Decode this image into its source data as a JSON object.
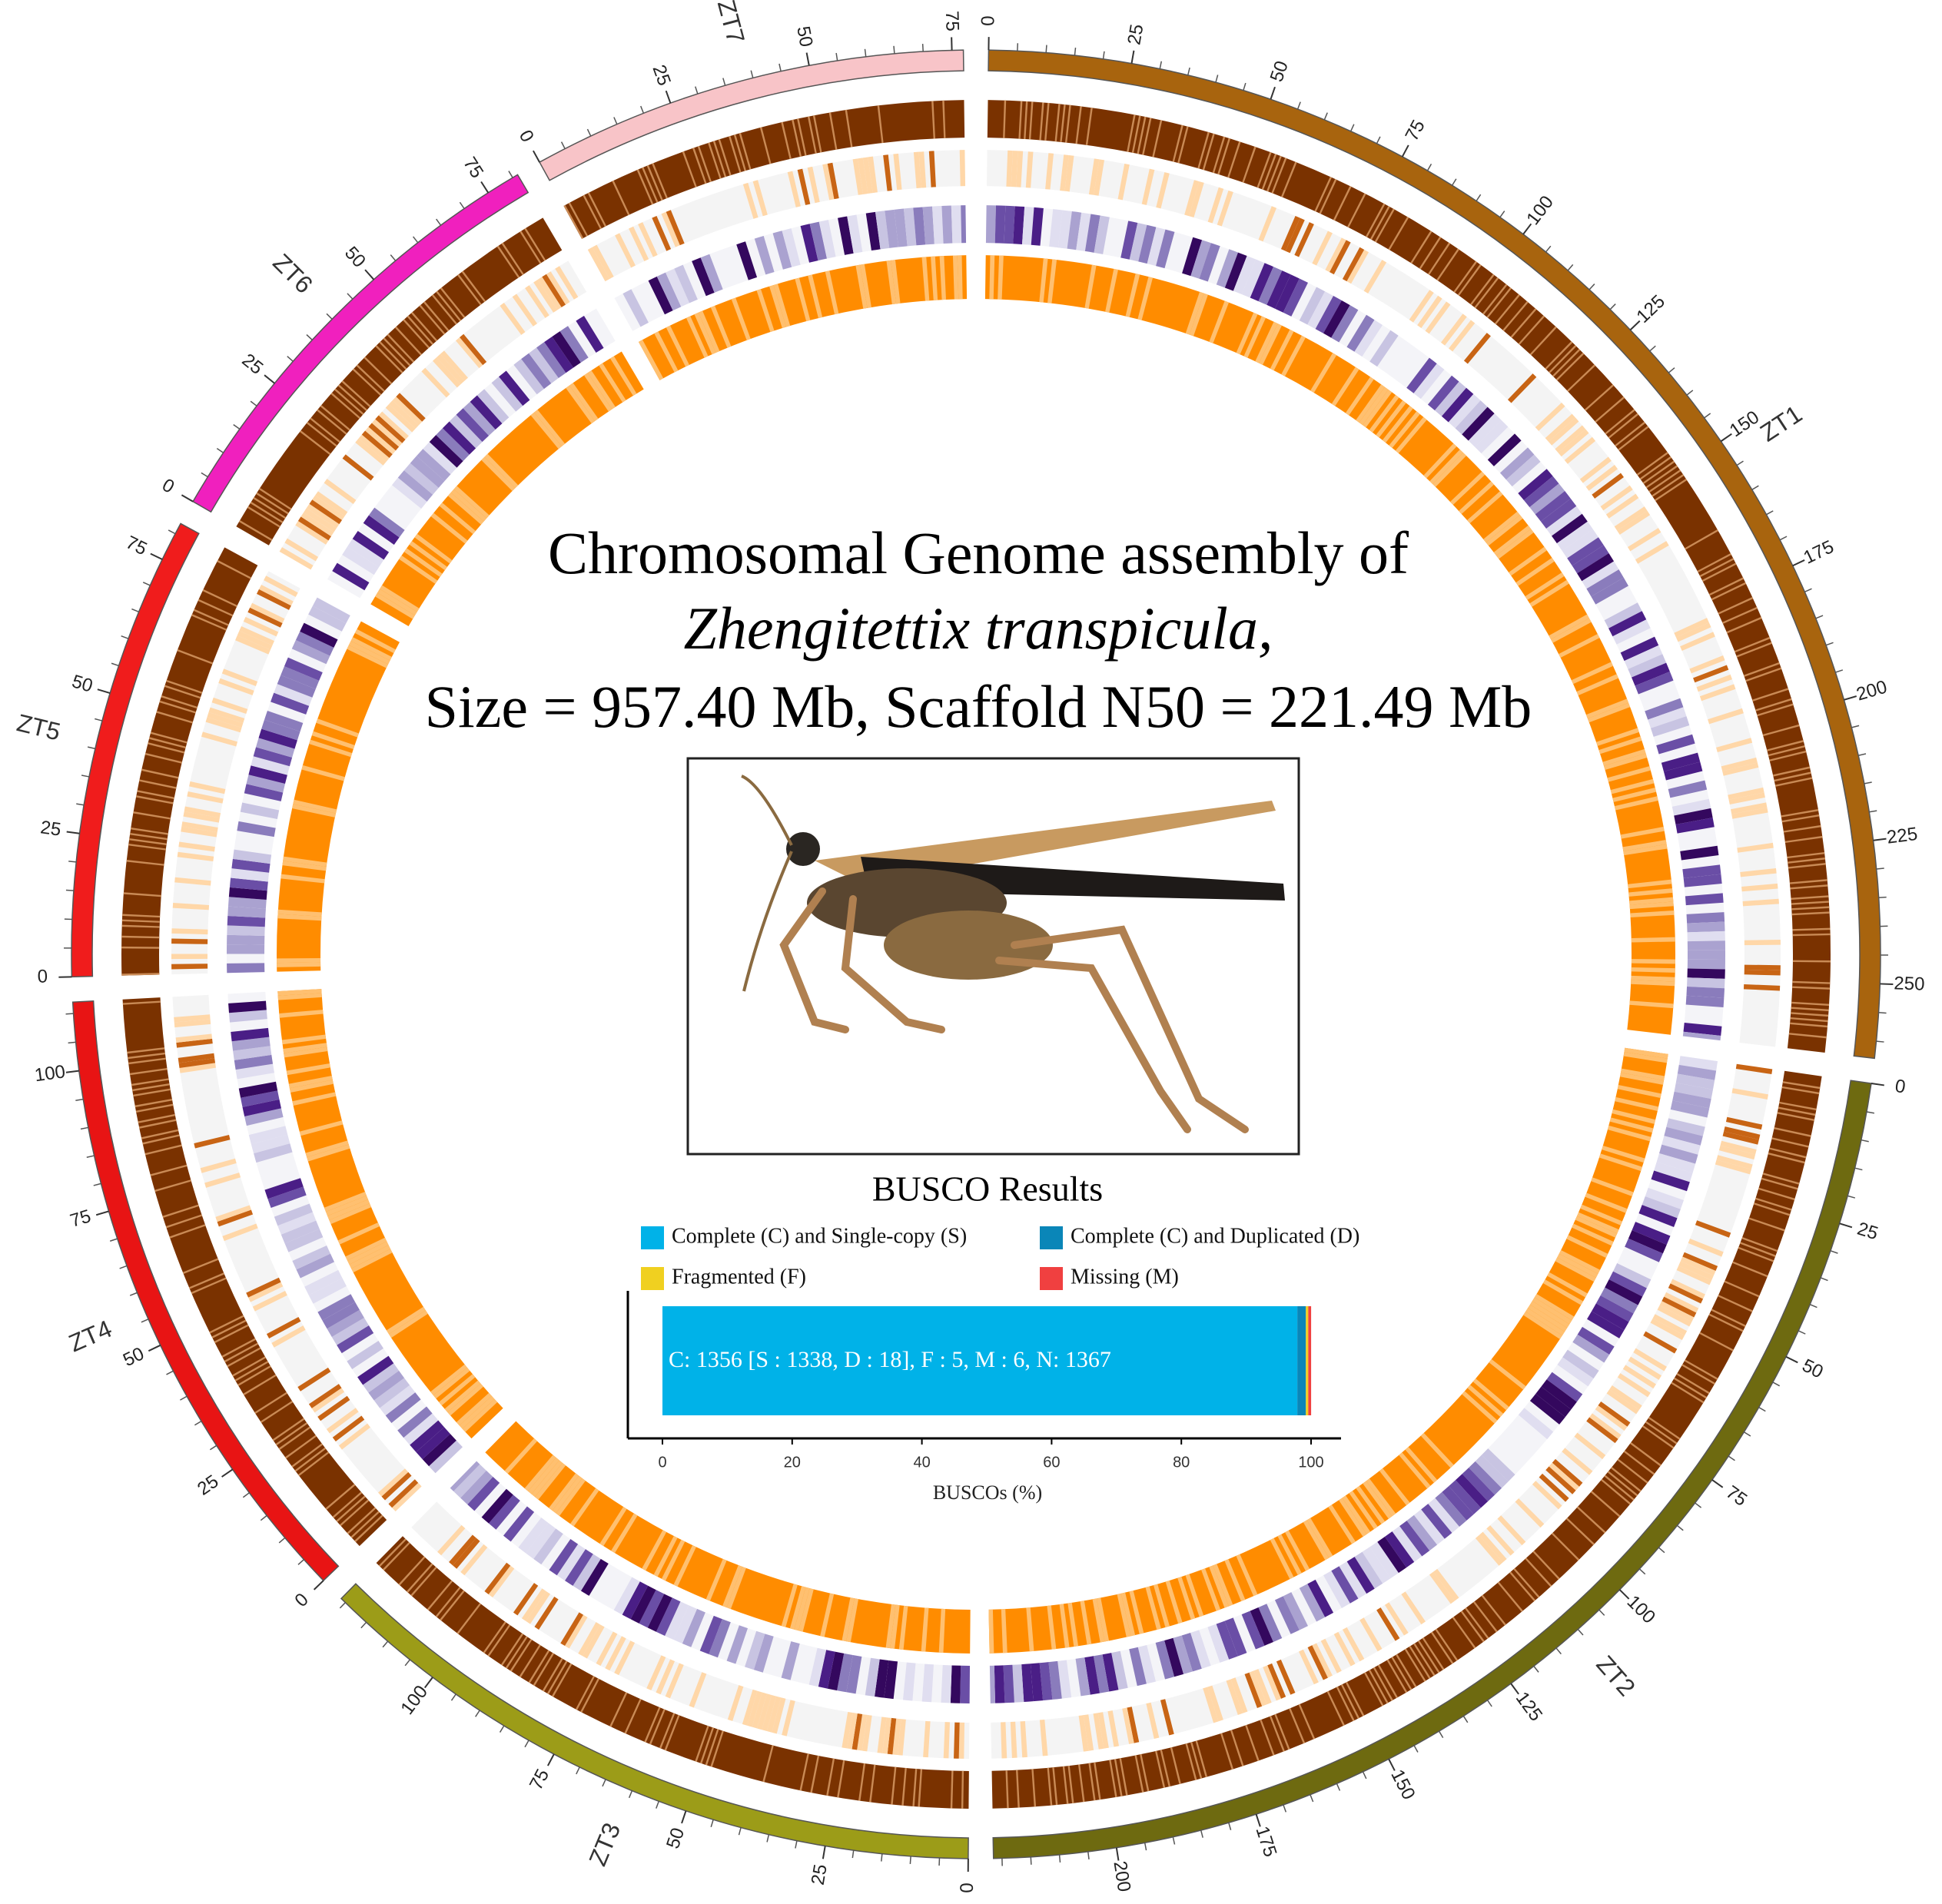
{
  "chart_data": [
    {
      "type": "circos",
      "title": "Chromosomal Genome assembly of",
      "subtitle": "Zhengitettix transpicula,",
      "annotation": "Size = 957.40 Mb, Scaffold N50 = 221.49 Mb",
      "chromosomes": [
        {
          "name": "ZT1",
          "color": "#a8640e",
          "length": 263,
          "ticks": [
            0,
            25,
            50,
            75,
            100,
            125,
            150,
            175,
            200,
            225,
            250
          ]
        },
        {
          "name": "ZT2",
          "color": "#6e6a10",
          "length": 221.49,
          "ticks": [
            0,
            25,
            50,
            75,
            100,
            125,
            150,
            175,
            200
          ]
        },
        {
          "name": "ZT3",
          "color": "#9c9c18",
          "length": 121,
          "ticks": [
            0,
            25,
            50,
            75,
            100
          ]
        },
        {
          "name": "ZT4",
          "color": "#e81414",
          "length": 112,
          "ticks": [
            0,
            25,
            50,
            75,
            100
          ]
        },
        {
          "name": "ZT5",
          "color": "#f01c1c",
          "length": 82,
          "ticks": [
            0,
            25,
            50,
            75
          ]
        },
        {
          "name": "ZT6",
          "color": "#f020be",
          "length": 81,
          "ticks": [
            0,
            25,
            50,
            75
          ]
        },
        {
          "name": "ZT7",
          "color": "#f8c4c8",
          "length": 77,
          "ticks": [
            0,
            25,
            50,
            75
          ]
        }
      ]
    },
    {
      "type": "stacked-hbar",
      "title": "BUSCO Results",
      "xlabel": "BUSCOs (%)",
      "annotation": "C: 1356 [S : 1338, D : 18], F : 5, M : 6, N: 1367",
      "categories": [
        null
      ],
      "xlim": [
        0,
        100
      ],
      "xticks": [
        0,
        20,
        40,
        60,
        80,
        100
      ],
      "series": [
        {
          "name": "Complete (C) and Single-copy (S)",
          "color": "#00b2e8",
          "values": [
            97.88
          ]
        },
        {
          "name": "Complete (C) and Duplicated (D)",
          "color": "#0a86b8",
          "values": [
            1.32
          ]
        },
        {
          "name": "Fragmented (F)",
          "color": "#f0d020",
          "values": [
            0.37
          ]
        },
        {
          "name": "Missing (M)",
          "color": "#f04040",
          "values": [
            0.44
          ]
        }
      ]
    }
  ]
}
